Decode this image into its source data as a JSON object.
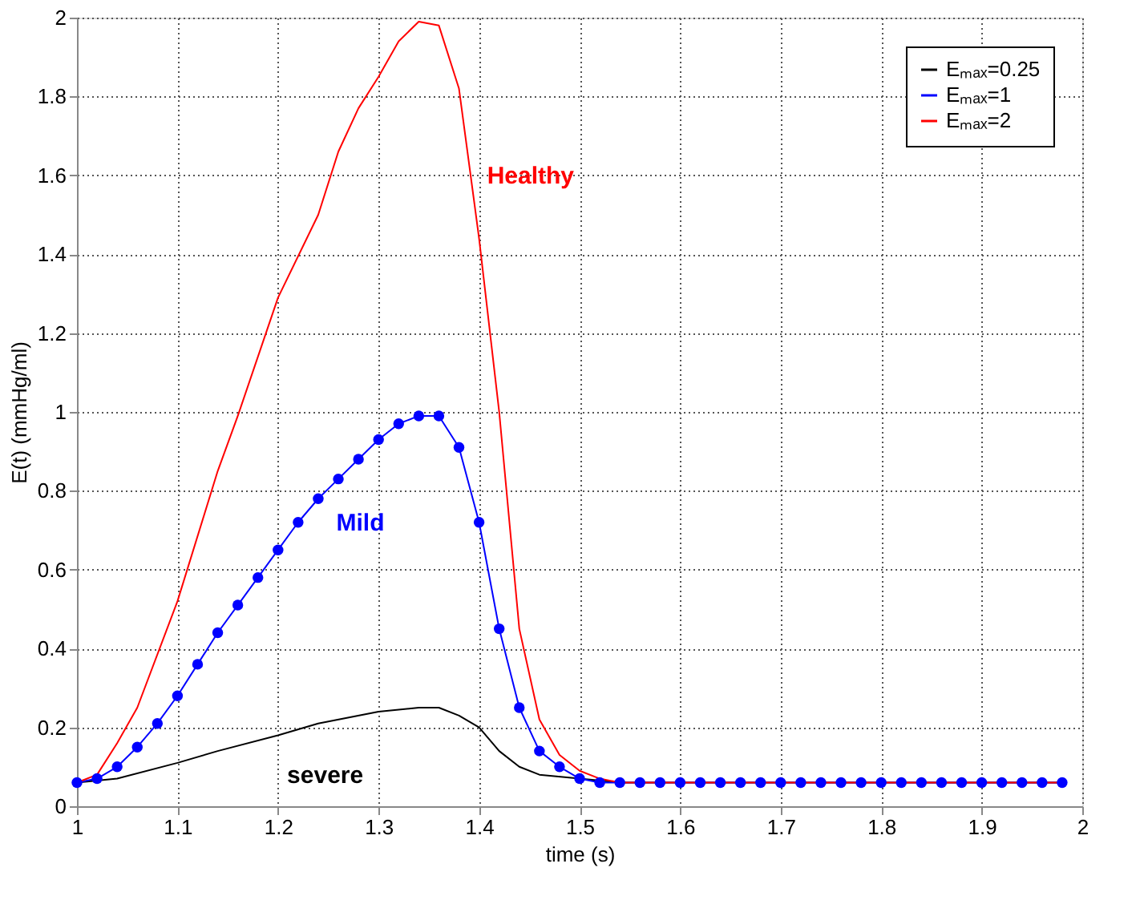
{
  "chart_data": {
    "type": "line",
    "xlabel": "time (s)",
    "ylabel": "E(t) (mmHg/ml)",
    "xlim": [
      1,
      2
    ],
    "xticks": [
      1,
      1.1,
      1.2,
      1.3,
      1.4,
      1.5,
      1.6,
      1.7,
      1.8,
      1.9,
      2
    ],
    "ylim": [
      0,
      2
    ],
    "yticks": [
      0,
      0.2,
      0.4,
      0.6,
      0.8,
      1,
      1.2,
      1.4,
      1.6,
      1.8,
      2
    ],
    "grid": true,
    "legend": "top right",
    "line_style": "solid",
    "series": [
      {
        "name": "Eₘₐₓ=0.25",
        "color": "#000000",
        "marker": "none",
        "x": [
          1.0,
          1.04,
          1.1,
          1.14,
          1.2,
          1.24,
          1.3,
          1.34,
          1.36,
          1.38,
          1.4,
          1.42,
          1.44,
          1.46,
          1.5,
          1.54,
          1.98
        ],
        "values": [
          0.06,
          0.07,
          0.11,
          0.14,
          0.18,
          0.21,
          0.24,
          0.25,
          0.25,
          0.23,
          0.2,
          0.14,
          0.1,
          0.08,
          0.07,
          0.06,
          0.06
        ]
      },
      {
        "name": "Eₘₐₓ=1",
        "color": "#0000ff",
        "marker": "circle",
        "x": [
          1.0,
          1.02,
          1.04,
          1.06,
          1.08,
          1.1,
          1.12,
          1.14,
          1.16,
          1.18,
          1.2,
          1.22,
          1.24,
          1.26,
          1.28,
          1.3,
          1.32,
          1.34,
          1.36,
          1.38,
          1.4,
          1.42,
          1.44,
          1.46,
          1.48,
          1.5,
          1.52,
          1.54,
          1.56,
          1.58,
          1.6,
          1.62,
          1.64,
          1.66,
          1.68,
          1.7,
          1.72,
          1.74,
          1.76,
          1.78,
          1.8,
          1.82,
          1.84,
          1.86,
          1.88,
          1.9,
          1.92,
          1.94,
          1.96,
          1.98
        ],
        "values": [
          0.06,
          0.07,
          0.1,
          0.15,
          0.21,
          0.28,
          0.36,
          0.44,
          0.51,
          0.58,
          0.65,
          0.72,
          0.78,
          0.83,
          0.88,
          0.93,
          0.97,
          0.99,
          0.99,
          0.91,
          0.72,
          0.45,
          0.25,
          0.14,
          0.1,
          0.07,
          0.06,
          0.06,
          0.06,
          0.06,
          0.06,
          0.06,
          0.06,
          0.06,
          0.06,
          0.06,
          0.06,
          0.06,
          0.06,
          0.06,
          0.06,
          0.06,
          0.06,
          0.06,
          0.06,
          0.06,
          0.06,
          0.06,
          0.06,
          0.06
        ]
      },
      {
        "name": "Eₘₐₓ=2",
        "color": "#ff0000",
        "marker": "none",
        "x": [
          1.0,
          1.02,
          1.04,
          1.06,
          1.1,
          1.14,
          1.16,
          1.2,
          1.24,
          1.26,
          1.28,
          1.3,
          1.32,
          1.34,
          1.36,
          1.38,
          1.4,
          1.42,
          1.44,
          1.46,
          1.48,
          1.5,
          1.52,
          1.54,
          1.98
        ],
        "values": [
          0.06,
          0.08,
          0.16,
          0.25,
          0.52,
          0.85,
          0.99,
          1.29,
          1.5,
          1.66,
          1.77,
          1.85,
          1.94,
          1.99,
          1.98,
          1.82,
          1.44,
          1.0,
          0.45,
          0.22,
          0.13,
          0.09,
          0.07,
          0.06,
          0.06
        ]
      }
    ],
    "annotations": [
      "severe",
      "Mild",
      "Healthy"
    ]
  }
}
